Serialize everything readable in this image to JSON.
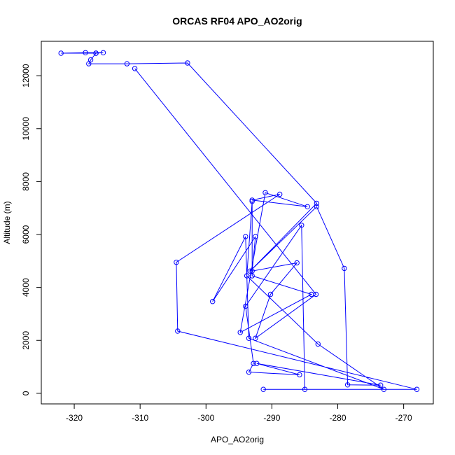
{
  "chart_data": {
    "type": "line",
    "title": "ORCAS RF04 APO_AO2orig",
    "xlabel": "APO_AO2orig",
    "ylabel": "Altitude (m)",
    "xlim": [
      -325.0,
      -265.5
    ],
    "ylim": [
      -400,
      13300
    ],
    "xticks": [
      -320,
      -310,
      -300,
      -290,
      -280,
      -270
    ],
    "xtick_labels": [
      "-320",
      "-310",
      "-300",
      "-290",
      "-280",
      "-270"
    ],
    "yticks": [
      0,
      2000,
      4000,
      6000,
      8000,
      10000,
      12000
    ],
    "ytick_labels": [
      "0",
      "2000",
      "4000",
      "6000",
      "8000",
      "10000",
      "12000"
    ],
    "grid": false,
    "marker": "open-circle",
    "series": [
      {
        "name": "",
        "color": "#0000ff",
        "x": [
          -316.7,
          -315.6,
          -318.3,
          -322.0,
          -316.7,
          -317.5,
          -317.8,
          -312.0,
          -302.8,
          -283.2,
          -293.3,
          -283.2,
          -279.0,
          -278.5,
          -273.5,
          -292.3,
          -285.8,
          -293.5,
          -292.8,
          -294.0,
          -285.5,
          -285.0,
          -291.3,
          -268.0,
          -304.3,
          -304.5,
          -288.8,
          -293.0,
          -284.6,
          -291.0,
          -294.8,
          -284.0,
          -293.0,
          -293.0,
          -293.8,
          -283.0,
          -273.0,
          -293.5,
          -294.0,
          -299.0,
          -292.5,
          -293.0,
          -286.2,
          -290.2,
          -292.5,
          -283.3,
          -310.8
        ],
        "y": [
          12850,
          12870,
          12870,
          12850,
          12850,
          12600,
          12450,
          12450,
          12480,
          7180,
          4620,
          7050,
          4720,
          320,
          310,
          1130,
          700,
          800,
          1130,
          3290,
          6350,
          150,
          150,
          150,
          2350,
          4950,
          7520,
          7300,
          7050,
          7580,
          2300,
          3740,
          4440,
          7250,
          4440,
          1860,
          150,
          2080,
          5920,
          3470,
          5920,
          4620,
          4930,
          3740,
          2080,
          3740,
          12270
        ]
      }
    ]
  }
}
